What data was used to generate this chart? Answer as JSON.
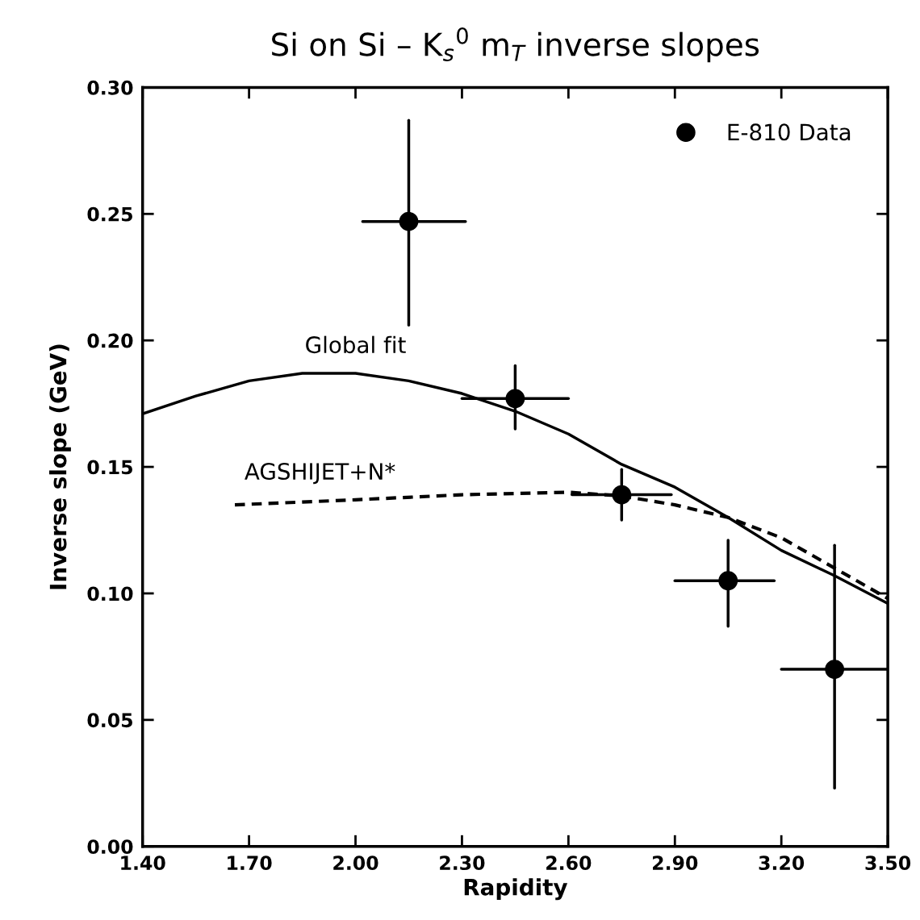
{
  "chart_data": {
    "type": "scatter",
    "title": "Si on Si – K$_{s}$$^{0}$ m$_{T}$ inverse slopes",
    "xlabel": "Rapidity",
    "ylabel": "Inverse slope (GeV)",
    "xlim": [
      1.4,
      3.5
    ],
    "ylim": [
      0.0,
      0.3
    ],
    "xticks": [
      {
        "value": 1.4,
        "label": "1.40"
      },
      {
        "value": 1.7,
        "label": "1.70"
      },
      {
        "value": 2.0,
        "label": "2.00"
      },
      {
        "value": 2.3,
        "label": "2.30"
      },
      {
        "value": 2.6,
        "label": "2.60"
      },
      {
        "value": 2.9,
        "label": "2.90"
      },
      {
        "value": 3.2,
        "label": "3.20"
      },
      {
        "value": 3.5,
        "label": "3.50"
      }
    ],
    "yticks": [
      {
        "value": 0.0,
        "label": "0.00"
      },
      {
        "value": 0.05,
        "label": "0.05"
      },
      {
        "value": 0.1,
        "label": "0.10"
      },
      {
        "value": 0.15,
        "label": "0.15"
      },
      {
        "value": 0.2,
        "label": "0.20"
      },
      {
        "value": 0.25,
        "label": "0.25"
      },
      {
        "value": 0.3,
        "label": "0.30"
      }
    ],
    "grid": false,
    "legend": "top right",
    "series": [
      {
        "name": "E-810 Data",
        "color": "#000000",
        "marker": "circle",
        "x": [
          2.15,
          2.45,
          2.75,
          3.05,
          3.35
        ],
        "values": [
          0.247,
          0.177,
          0.139,
          0.105,
          0.07
        ],
        "errors": [
          [
            0.206,
            0.287
          ],
          [
            0.165,
            0.19
          ],
          [
            0.129,
            0.149
          ],
          [
            0.087,
            0.121
          ],
          [
            0.023,
            0.119
          ]
        ],
        "xerrors": [
          [
            2.02,
            2.31
          ],
          [
            2.3,
            2.6
          ],
          [
            2.61,
            2.89
          ],
          [
            2.9,
            3.18
          ],
          [
            3.2,
            3.5
          ]
        ]
      },
      {
        "type": "line",
        "color": "#000000",
        "line_style": "solid",
        "x": [
          1.4,
          1.55,
          1.7,
          1.85,
          2.0,
          2.15,
          2.3,
          2.45,
          2.6,
          2.75,
          2.9,
          3.05,
          3.2,
          3.35,
          3.5
        ],
        "values": [
          0.171,
          0.178,
          0.184,
          0.187,
          0.187,
          0.184,
          0.179,
          0.172,
          0.163,
          0.151,
          0.142,
          0.13,
          0.117,
          0.107,
          0.096
        ]
      },
      {
        "type": "line",
        "color": "#000000",
        "line_style": "dashed",
        "x": [
          1.66,
          2.0,
          2.3,
          2.6,
          2.75,
          2.9,
          3.05,
          3.2,
          3.35,
          3.5
        ],
        "values": [
          0.135,
          0.137,
          0.139,
          0.14,
          0.1385,
          0.135,
          0.13,
          0.122,
          0.11,
          0.098
        ]
      }
    ],
    "annotations": [
      {
        "text": "Global fit",
        "x": 2.0,
        "y": 0.187
      },
      {
        "text": "AGSHIJET+N*",
        "x": 1.9,
        "y": 0.137
      }
    ]
  }
}
